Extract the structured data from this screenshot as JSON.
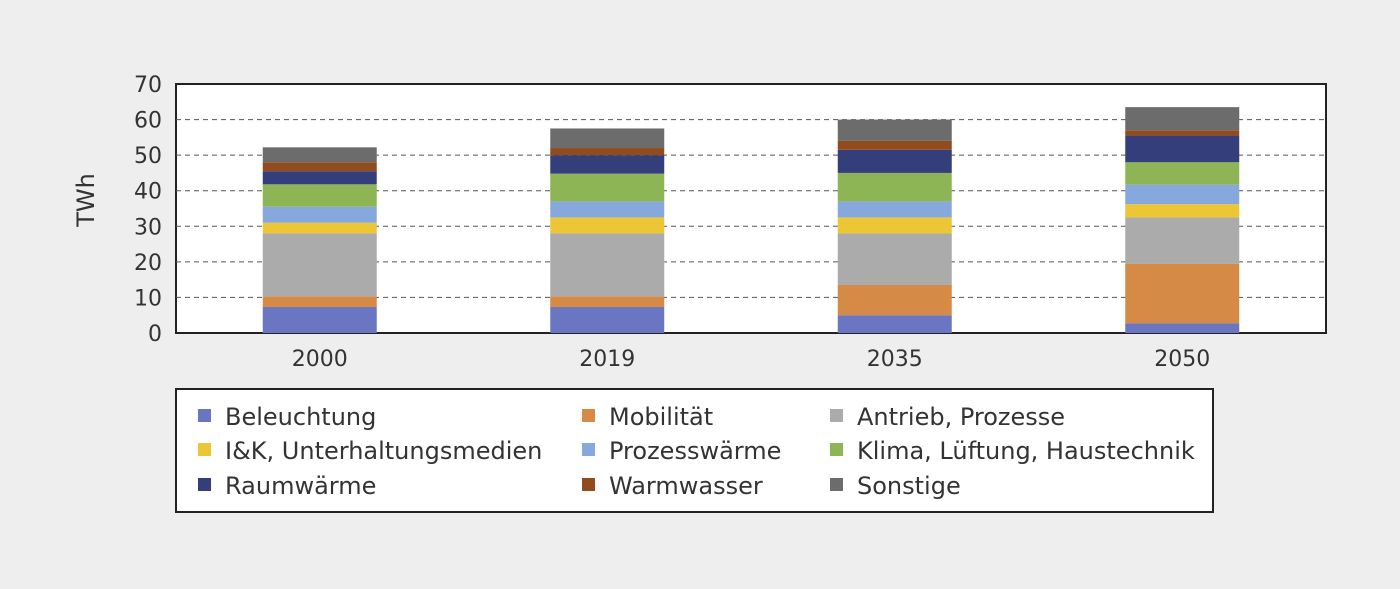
{
  "chart_data": {
    "type": "bar",
    "stacked": true,
    "title": "",
    "xlabel": "",
    "ylabel": "TWh",
    "ylim": [
      0,
      70
    ],
    "yticks": [
      0,
      10,
      20,
      30,
      40,
      50,
      60,
      70
    ],
    "grid": "horizontal dashed",
    "legend_position": "bottom",
    "categories": [
      "2000",
      "2019",
      "2035",
      "2050"
    ],
    "series": [
      {
        "name": "Beleuchtung",
        "color": "#6a76c2",
        "values": [
          7.3,
          7.3,
          5.0,
          2.7
        ]
      },
      {
        "name": "Mobilität",
        "color": "#d58a45",
        "values": [
          3.0,
          3.0,
          8.5,
          16.8
        ]
      },
      {
        "name": "Antrieb, Prozesse",
        "color": "#ababab",
        "values": [
          17.7,
          17.7,
          14.5,
          13.0
        ]
      },
      {
        "name": "I&K, Unterhaltungsmedien",
        "color": "#ecc634",
        "values": [
          3.0,
          4.5,
          4.5,
          3.7
        ]
      },
      {
        "name": "Prozesswärme",
        "color": "#86a8dd",
        "values": [
          4.5,
          4.5,
          4.5,
          5.5
        ]
      },
      {
        "name": "Klima, Lüftung, Haustechnik",
        "color": "#8db555",
        "values": [
          6.3,
          7.8,
          8.0,
          6.3
        ]
      },
      {
        "name": "Raumwärme",
        "color": "#343e7b",
        "values": [
          3.7,
          5.2,
          6.5,
          7.5
        ]
      },
      {
        "name": "Warmwasser",
        "color": "#914b1c",
        "values": [
          2.5,
          2.0,
          2.5,
          1.5
        ]
      },
      {
        "name": "Sonstige",
        "color": "#6c6c6c",
        "values": [
          4.2,
          5.5,
          6.0,
          6.5
        ]
      }
    ]
  }
}
